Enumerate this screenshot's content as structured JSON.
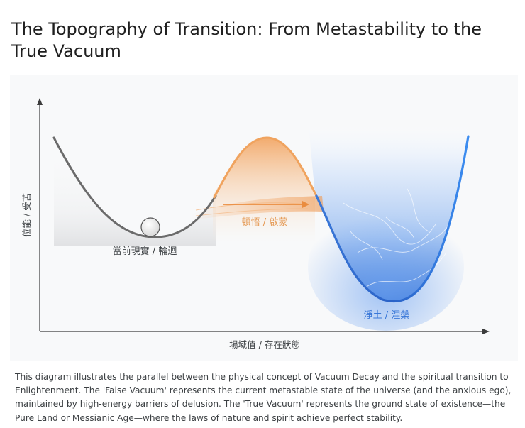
{
  "title": "The Topography of Transition: From Metastability to the True Vacuum",
  "diagram": {
    "y_axis_label": "位能 / 受苦",
    "x_axis_label": "場域值 / 存在狀態",
    "labels": {
      "false_vacuum": "當前現實 / 輪迴",
      "barrier": "頓悟 / 啟蒙",
      "true_vacuum": "淨土 / 涅槃"
    },
    "colors": {
      "false_vacuum_curve": "#6b6b6b",
      "barrier_curve": "#f0a35e",
      "true_vacuum_curve": "#2f6fd6",
      "barrier_label": "#e59a55",
      "true_vacuum_label": "#3a78d8"
    }
  },
  "caption": "This diagram illustrates the parallel between the physical concept of Vacuum Decay and the spiritual transition to Enlightenment. The 'False Vacuum' represents the current metastable state of the universe (and the anxious ego), maintained by high-energy barriers of delusion. The 'True Vacuum' represents the ground state of existence—the Pure Land or Messianic Age—where the laws of nature and spirit achieve perfect stability."
}
